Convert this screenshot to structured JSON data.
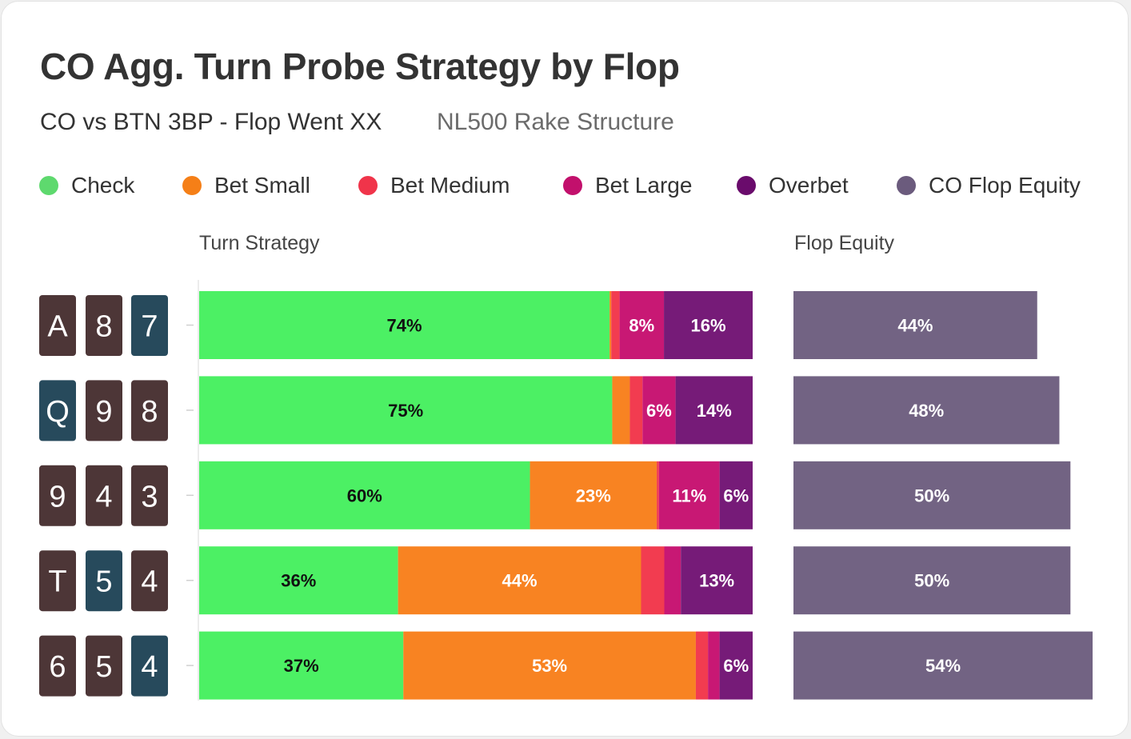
{
  "title": "CO Agg. Turn Probe Strategy by Flop",
  "subtitle": "CO vs BTN 3BP - Flop Went XX",
  "subtitle_secondary": "NL500 Rake Structure",
  "colors": {
    "check": "#4cf064",
    "bet_small": "#f88322",
    "bet_medium": "#f23c50",
    "bet_large": "#c81874",
    "overbet": "#761b78",
    "equity": "#726383",
    "card_dark": "#4d3637",
    "card_blue": "#274a5c"
  },
  "legend": [
    {
      "label": "Check",
      "color": "#4cf064",
      "dot_color": "#5ed96e"
    },
    {
      "label": "Bet Small",
      "color": "#f88322",
      "dot_color": "#f57f17"
    },
    {
      "label": "Bet Medium",
      "color": "#f23c50",
      "dot_color": "#f0344a"
    },
    {
      "label": "Bet Large",
      "color": "#c81874",
      "dot_color": "#c2106c"
    },
    {
      "label": "Overbet",
      "color": "#761b78",
      "dot_color": "#6a0b6c"
    },
    {
      "label": "CO Flop Equity",
      "color": "#726383",
      "dot_color": "#6b5b7d"
    }
  ],
  "column_headers": {
    "strategy": "Turn Strategy",
    "equity": "Flop Equity"
  },
  "chart_data": {
    "type": "bar",
    "orientation": "horizontal",
    "stacked": true,
    "categories": [
      "A87",
      "Q98",
      "943",
      "T54",
      "654"
    ],
    "flop_cards": [
      [
        {
          "rank": "A",
          "suit_color": "dark"
        },
        {
          "rank": "8",
          "suit_color": "dark"
        },
        {
          "rank": "7",
          "suit_color": "blue"
        }
      ],
      [
        {
          "rank": "Q",
          "suit_color": "blue"
        },
        {
          "rank": "9",
          "suit_color": "dark"
        },
        {
          "rank": "8",
          "suit_color": "dark"
        }
      ],
      [
        {
          "rank": "9",
          "suit_color": "dark"
        },
        {
          "rank": "4",
          "suit_color": "dark"
        },
        {
          "rank": "3",
          "suit_color": "dark"
        }
      ],
      [
        {
          "rank": "T",
          "suit_color": "dark"
        },
        {
          "rank": "5",
          "suit_color": "blue"
        },
        {
          "rank": "4",
          "suit_color": "dark"
        }
      ],
      [
        {
          "rank": "6",
          "suit_color": "dark"
        },
        {
          "rank": "5",
          "suit_color": "dark"
        },
        {
          "rank": "4",
          "suit_color": "blue"
        }
      ]
    ],
    "series": [
      {
        "name": "Check",
        "values": [
          74,
          75,
          60,
          36,
          37
        ],
        "labels": [
          "74%",
          "75%",
          "60%",
          "36%",
          "37%"
        ]
      },
      {
        "name": "Bet Small",
        "values": [
          0.3,
          3.2,
          23,
          44,
          53
        ],
        "labels": [
          "",
          "",
          "23%",
          "44%",
          "53%"
        ]
      },
      {
        "name": "Bet Medium",
        "values": [
          1.5,
          2.3,
          0.4,
          4.2,
          2.2
        ],
        "labels": [
          "",
          "",
          "",
          "",
          ""
        ]
      },
      {
        "name": "Bet Large",
        "values": [
          8,
          6,
          11,
          3,
          2.1
        ],
        "labels": [
          "8%",
          "6%",
          "11%",
          "",
          ""
        ]
      },
      {
        "name": "Overbet",
        "values": [
          16,
          14,
          6,
          13,
          6
        ],
        "labels": [
          "16%",
          "14%",
          "6%",
          "13%",
          "6%"
        ]
      }
    ],
    "equity": {
      "name": "CO Flop Equity",
      "values": [
        44,
        48,
        50,
        50,
        54
      ],
      "labels": [
        "44%",
        "48%",
        "50%",
        "50%",
        "54%"
      ],
      "xlim": [
        0,
        54
      ]
    },
    "xlim": [
      0,
      100
    ],
    "grid": false,
    "legend_position": "top"
  }
}
